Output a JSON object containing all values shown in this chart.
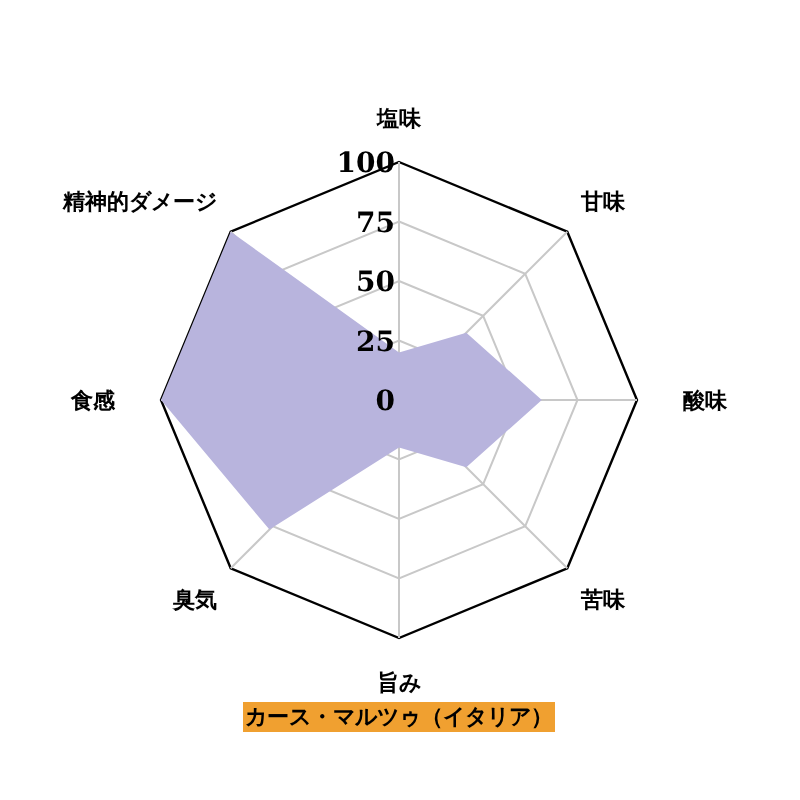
{
  "chart_data": {
    "type": "radar",
    "categories": [
      "塩味",
      "甘味",
      "酸味",
      "苦味",
      "旨み",
      "臭気",
      "食感",
      "精神的ダメージ"
    ],
    "series": [
      {
        "name": "カース・マルツゥ（イタリア）",
        "color": "#b8b4dd",
        "values": [
          20,
          40,
          60,
          40,
          20,
          77,
          100,
          100
        ]
      }
    ],
    "ylim": [
      0,
      100
    ],
    "yticks": [
      0,
      25,
      50,
      75,
      100
    ],
    "grid": true,
    "legend": "bottom"
  }
}
